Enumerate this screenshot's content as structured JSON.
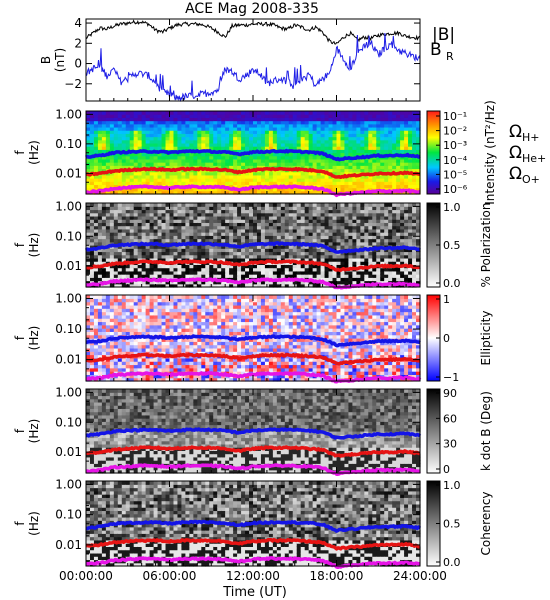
{
  "title": "ACE Mag 2008-335",
  "colors": {
    "B_total": "#000000",
    "B_R": "#1f1fe6",
    "H_plus": "#1414e6",
    "He_plus": "#e61414",
    "O_plus": "#e614e6"
  },
  "chart_data": [
    {
      "type": "line",
      "panel": "B",
      "ylabel_lines": [
        "B",
        "(nT)"
      ],
      "yticks": [
        4,
        2,
        0,
        -2
      ],
      "ylim": [
        -3.7,
        4.4
      ],
      "xlim": [
        0,
        24
      ],
      "legend": [
        {
          "label": "|B|",
          "color": "#000000"
        },
        {
          "label": "B",
          "sub": "R",
          "color": "#1f1fe6"
        }
      ],
      "series": [
        {
          "name": "|B|",
          "x": [
            0,
            0.5,
            1,
            1.5,
            2,
            2.5,
            3,
            3.5,
            4,
            4.5,
            5,
            5.5,
            6,
            6.5,
            7,
            7.5,
            8,
            8.5,
            9,
            9.5,
            10,
            10.5,
            11,
            11.5,
            12,
            12.5,
            13,
            13.5,
            14,
            14.5,
            15,
            15.5,
            16,
            16.5,
            17,
            17.5,
            18,
            18.5,
            19,
            19.5,
            20,
            20.5,
            21,
            21.5,
            22,
            22.5,
            23,
            23.5,
            24
          ],
          "y": [
            2.5,
            3.0,
            3.5,
            3.4,
            3.7,
            3.9,
            4.0,
            4.1,
            4.1,
            3.9,
            3.3,
            3.1,
            3.5,
            3.8,
            3.9,
            3.9,
            3.9,
            3.8,
            3.5,
            3.1,
            2.6,
            3.7,
            3.8,
            3.8,
            3.9,
            3.9,
            3.9,
            3.8,
            3.5,
            3.4,
            3.8,
            3.6,
            3.3,
            3.6,
            3.1,
            2.2,
            1.9,
            2.6,
            3.0,
            2.3,
            2.6,
            2.5,
            2.8,
            2.9,
            3.0,
            3.0,
            2.7,
            2.6,
            2.5
          ]
        },
        {
          "name": "B_R",
          "x": [
            0,
            0.5,
            1,
            1.5,
            2,
            2.5,
            3,
            3.5,
            4,
            4.5,
            5,
            5.5,
            6,
            6.5,
            7,
            7.5,
            8,
            8.5,
            9,
            9.5,
            10,
            10.5,
            11,
            11.5,
            12,
            12.5,
            13,
            13.5,
            14,
            14.5,
            15,
            15.5,
            16,
            16.5,
            17,
            17.5,
            18,
            18.5,
            19,
            19.5,
            20,
            20.5,
            21,
            21.5,
            22,
            22.5,
            23,
            23.5,
            24
          ],
          "y": [
            -1.0,
            -0.5,
            -0.3,
            -1.2,
            -0.6,
            -1.8,
            -1.5,
            -1.0,
            -1.0,
            -1.2,
            -1.9,
            -2.8,
            -3.1,
            -3.4,
            -3.3,
            -3.2,
            -3.1,
            -3.0,
            -2.8,
            -2.6,
            -0.5,
            -0.8,
            -1.5,
            -1.2,
            -0.6,
            -1.0,
            -2.0,
            -1.7,
            -1.5,
            -1.8,
            -2.0,
            -1.5,
            -1.0,
            -2.2,
            -1.5,
            -1.0,
            1.5,
            0.5,
            -0.5,
            1.0,
            1.8,
            2.0,
            0.8,
            1.6,
            1.9,
            1.3,
            1.0,
            0.7,
            0.5
          ]
        }
      ]
    },
    {
      "type": "heatmap",
      "panel": "intensity",
      "ylabel_lines": [
        "f",
        "(Hz)"
      ],
      "yticks": [
        "1.00",
        "0.10",
        "0.01"
      ],
      "colorbar": {
        "label": "Intensity (nT²/Hz)",
        "tick_labels": [
          "10⁻¹",
          "10⁻²",
          "10⁻³",
          "10⁻⁴",
          "10⁻⁵",
          "10⁻⁶"
        ],
        "scale": "log",
        "palette": "rainbow"
      },
      "legend": [
        {
          "label": "Ω",
          "sub": "H+",
          "color": "#1414e6"
        },
        {
          "label": "Ω",
          "sub": "He+",
          "color": "#e61414"
        },
        {
          "label": "Ω",
          "sub": "O+",
          "color": "#e614e6"
        }
      ]
    },
    {
      "type": "heatmap",
      "panel": "polarization",
      "ylabel_lines": [
        "f",
        "(Hz)"
      ],
      "yticks": [
        "1.00",
        "0.10",
        "0.01"
      ],
      "colorbar": {
        "label": "% Polarization",
        "tick_labels": [
          "1.0",
          "0.5",
          "0.0"
        ],
        "palette": "gray"
      }
    },
    {
      "type": "heatmap",
      "panel": "ellipticity",
      "ylabel_lines": [
        "f",
        "(Hz)"
      ],
      "yticks": [
        "1.00",
        "0.10",
        "0.01"
      ],
      "colorbar": {
        "label": "Ellipticity",
        "tick_labels": [
          "1",
          "0",
          "-1"
        ],
        "palette": "red-white-blue"
      }
    },
    {
      "type": "heatmap",
      "panel": "kdotb",
      "ylabel_lines": [
        "f",
        "(Hz)"
      ],
      "yticks": [
        "1.00",
        "0.10",
        "0.01"
      ],
      "colorbar": {
        "label": "k dot B (Deg)",
        "tick_labels": [
          "90",
          "60",
          "30",
          "0"
        ],
        "palette": "gray"
      }
    },
    {
      "type": "heatmap",
      "panel": "coherency",
      "ylabel_lines": [
        "f",
        "(Hz)"
      ],
      "yticks": [
        "1.00",
        "0.10",
        "0.01"
      ],
      "colorbar": {
        "label": "Coherency",
        "tick_labels": [
          "1.0",
          "0.5",
          "0.0"
        ],
        "palette": "gray"
      }
    }
  ],
  "gyrofrequency_lines": {
    "x_hours": [
      0,
      1,
      2,
      3,
      4,
      5,
      6,
      7,
      8,
      9,
      10,
      11,
      12,
      13,
      14,
      15,
      16,
      17,
      18,
      19,
      20,
      21,
      22,
      23,
      24
    ],
    "H_plus_hz": [
      0.036,
      0.04,
      0.05,
      0.053,
      0.055,
      0.055,
      0.051,
      0.055,
      0.057,
      0.055,
      0.052,
      0.045,
      0.053,
      0.055,
      0.057,
      0.055,
      0.053,
      0.047,
      0.03,
      0.033,
      0.036,
      0.04,
      0.04,
      0.042,
      0.036
    ],
    "He_plus_hz": [
      0.009,
      0.01,
      0.012,
      0.013,
      0.014,
      0.014,
      0.013,
      0.014,
      0.014,
      0.014,
      0.013,
      0.011,
      0.013,
      0.014,
      0.014,
      0.014,
      0.013,
      0.012,
      0.0075,
      0.0083,
      0.009,
      0.01,
      0.01,
      0.0105,
      0.009
    ],
    "O_plus_hz": [
      0.0023,
      0.0025,
      0.0031,
      0.0033,
      0.0035,
      0.0035,
      0.0032,
      0.0035,
      0.0035,
      0.0035,
      0.0033,
      0.0028,
      0.0033,
      0.0035,
      0.0035,
      0.0035,
      0.0033,
      0.003,
      0.0019,
      0.0021,
      0.0023,
      0.0025,
      0.0025,
      0.0026,
      0.0023
    ]
  },
  "x_axis": {
    "label": "Time (UT)",
    "tick_labels": [
      "00:00:00",
      "06:00:00",
      "12:00:00",
      "18:00:00",
      "24:00:00"
    ],
    "range_hours": [
      0,
      24
    ]
  }
}
